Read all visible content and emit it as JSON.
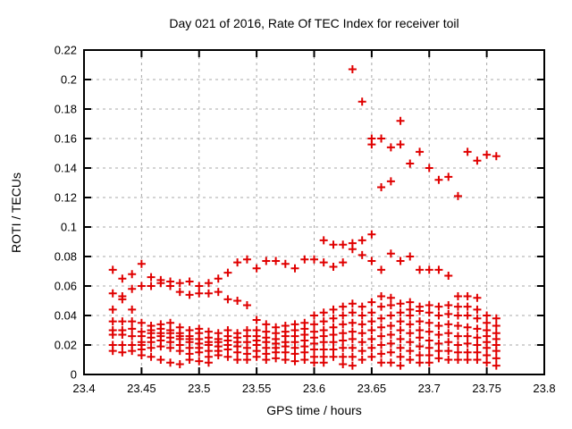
{
  "window": {
    "title": "Day 021 of 2016, Rate Of TEC Index for receiver toil"
  },
  "colors": {
    "marker": "#e00000",
    "grid": "#a8a8a8",
    "axis": "#000000",
    "background": "#ffffff"
  },
  "chart_data": {
    "type": "scatter",
    "title": "Day 021 of 2016, Rate Of TEC Index for receiver toil",
    "xlabel": "GPS time / hours",
    "ylabel": "ROTI / TECUs",
    "xlim": [
      23.4,
      23.8
    ],
    "ylim": [
      0,
      0.22
    ],
    "grid": "dashed",
    "legend": "none",
    "marker": {
      "shape": "plus",
      "color": "#e00000",
      "size": 9
    },
    "xticks": {
      "values": [
        23.4,
        23.45,
        23.5,
        23.55,
        23.6,
        23.65,
        23.7,
        23.75,
        23.8
      ],
      "labels": [
        "23.4",
        "23.45",
        "23.5",
        "23.55",
        "23.6",
        "23.65",
        "23.7",
        "23.75",
        "23.8"
      ]
    },
    "yticks": {
      "values": [
        0,
        0.02,
        0.04,
        0.06,
        0.08,
        0.1,
        0.12,
        0.14,
        0.16,
        0.18,
        0.2,
        0.22
      ],
      "labels": [
        "0",
        "0.02",
        "0.04",
        "0.06",
        "0.08",
        "0.1",
        "0.12",
        "0.14",
        "0.16",
        "0.18",
        "0.2",
        "0.22"
      ]
    },
    "series": [
      {
        "name": "ROTI",
        "columns": [
          {
            "t": 23.425,
            "v": [
              0.071,
              0.055,
              0.044,
              0.036,
              0.03,
              0.027,
              0.02,
              0.016
            ]
          },
          {
            "t": 23.4333,
            "v": [
              0.065,
              0.053,
              0.051,
              0.036,
              0.03,
              0.027,
              0.02,
              0.015
            ]
          },
          {
            "t": 23.4417,
            "v": [
              0.068,
              0.058,
              0.044,
              0.036,
              0.031,
              0.026,
              0.02,
              0.016
            ]
          },
          {
            "t": 23.45,
            "v": [
              0.075,
              0.06,
              0.035,
              0.029,
              0.026,
              0.022,
              0.02,
              0.017,
              0.013
            ]
          },
          {
            "t": 23.4583,
            "v": [
              0.066,
              0.06,
              0.033,
              0.03,
              0.028,
              0.025,
              0.022,
              0.018,
              0.012
            ]
          },
          {
            "t": 23.4667,
            "v": [
              0.064,
              0.062,
              0.034,
              0.031,
              0.028,
              0.026,
              0.023,
              0.019,
              0.01
            ]
          },
          {
            "t": 23.475,
            "v": [
              0.063,
              0.06,
              0.035,
              0.03,
              0.028,
              0.025,
              0.022,
              0.018,
              0.008
            ]
          },
          {
            "t": 23.4833,
            "v": [
              0.062,
              0.056,
              0.032,
              0.028,
              0.026,
              0.024,
              0.02,
              0.016,
              0.007
            ]
          },
          {
            "t": 23.4917,
            "v": [
              0.063,
              0.054,
              0.03,
              0.026,
              0.024,
              0.022,
              0.018,
              0.014,
              0.01
            ]
          },
          {
            "t": 23.5,
            "v": [
              0.06,
              0.055,
              0.031,
              0.028,
              0.024,
              0.021,
              0.018,
              0.015,
              0.009
            ]
          },
          {
            "t": 23.5083,
            "v": [
              0.062,
              0.055,
              0.029,
              0.025,
              0.022,
              0.02,
              0.016,
              0.012,
              0.008
            ]
          },
          {
            "t": 23.5167,
            "v": [
              0.065,
              0.056,
              0.028,
              0.024,
              0.022,
              0.019,
              0.016,
              0.013
            ]
          },
          {
            "t": 23.525,
            "v": [
              0.069,
              0.051,
              0.03,
              0.026,
              0.023,
              0.02,
              0.017,
              0.012
            ]
          },
          {
            "t": 23.5333,
            "v": [
              0.076,
              0.05,
              0.028,
              0.025,
              0.022,
              0.019,
              0.015,
              0.01
            ]
          },
          {
            "t": 23.5417,
            "v": [
              0.078,
              0.047,
              0.03,
              0.026,
              0.022,
              0.018,
              0.014,
              0.01
            ]
          },
          {
            "t": 23.55,
            "v": [
              0.072,
              0.037,
              0.03,
              0.026,
              0.023,
              0.02,
              0.016,
              0.012
            ]
          },
          {
            "t": 23.5583,
            "v": [
              0.077,
              0.034,
              0.029,
              0.025,
              0.022,
              0.018,
              0.014,
              0.01
            ]
          },
          {
            "t": 23.5667,
            "v": [
              0.077,
              0.032,
              0.028,
              0.024,
              0.021,
              0.018,
              0.015,
              0.011
            ]
          },
          {
            "t": 23.575,
            "v": [
              0.075,
              0.033,
              0.029,
              0.026,
              0.022,
              0.019,
              0.015,
              0.01
            ]
          },
          {
            "t": 23.5833,
            "v": [
              0.072,
              0.034,
              0.03,
              0.026,
              0.022,
              0.018,
              0.014,
              0.009
            ]
          },
          {
            "t": 23.5917,
            "v": [
              0.078,
              0.035,
              0.031,
              0.027,
              0.023,
              0.019,
              0.015,
              0.01
            ]
          },
          {
            "t": 23.6,
            "v": [
              0.078,
              0.04,
              0.034,
              0.029,
              0.025,
              0.021,
              0.017,
              0.012,
              0.008
            ]
          },
          {
            "t": 23.6083,
            "v": [
              0.091,
              0.076,
              0.042,
              0.036,
              0.03,
              0.026,
              0.022,
              0.017,
              0.012,
              0.008
            ]
          },
          {
            "t": 23.6167,
            "v": [
              0.088,
              0.073,
              0.044,
              0.038,
              0.032,
              0.027,
              0.022,
              0.017,
              0.012
            ]
          },
          {
            "t": 23.625,
            "v": [
              0.088,
              0.076,
              0.046,
              0.04,
              0.034,
              0.028,
              0.023,
              0.018,
              0.012,
              0.007
            ]
          },
          {
            "t": 23.6333,
            "v": [
              0.207,
              0.089,
              0.085,
              0.048,
              0.042,
              0.035,
              0.029,
              0.024,
              0.018,
              0.012,
              0.006
            ]
          },
          {
            "t": 23.6417,
            "v": [
              0.185,
              0.091,
              0.081,
              0.046,
              0.04,
              0.034,
              0.028,
              0.022,
              0.016,
              0.01
            ]
          },
          {
            "t": 23.65,
            "v": [
              0.16,
              0.156,
              0.095,
              0.077,
              0.049,
              0.042,
              0.036,
              0.03,
              0.024,
              0.018,
              0.012
            ]
          },
          {
            "t": 23.6583,
            "v": [
              0.16,
              0.127,
              0.071,
              0.053,
              0.046,
              0.038,
              0.032,
              0.026,
              0.02,
              0.014,
              0.008
            ]
          },
          {
            "t": 23.6667,
            "v": [
              0.154,
              0.131,
              0.082,
              0.052,
              0.047,
              0.04,
              0.033,
              0.027,
              0.021,
              0.015,
              0.008
            ]
          },
          {
            "t": 23.675,
            "v": [
              0.172,
              0.156,
              0.077,
              0.048,
              0.042,
              0.036,
              0.03,
              0.024,
              0.018,
              0.012,
              0.006
            ]
          },
          {
            "t": 23.6833,
            "v": [
              0.143,
              0.08,
              0.049,
              0.044,
              0.04,
              0.034,
              0.028,
              0.022,
              0.016,
              0.01
            ]
          },
          {
            "t": 23.6917,
            "v": [
              0.151,
              0.071,
              0.046,
              0.043,
              0.036,
              0.03,
              0.025,
              0.019,
              0.013,
              0.008
            ]
          },
          {
            "t": 23.7,
            "v": [
              0.14,
              0.071,
              0.047,
              0.042,
              0.035,
              0.029,
              0.023,
              0.018,
              0.013,
              0.008
            ]
          },
          {
            "t": 23.7083,
            "v": [
              0.132,
              0.071,
              0.046,
              0.04,
              0.033,
              0.027,
              0.021,
              0.016,
              0.011
            ]
          },
          {
            "t": 23.7167,
            "v": [
              0.134,
              0.067,
              0.047,
              0.041,
              0.034,
              0.028,
              0.022,
              0.016,
              0.01
            ]
          },
          {
            "t": 23.725,
            "v": [
              0.121,
              0.053,
              0.046,
              0.04,
              0.033,
              0.026,
              0.02,
              0.015,
              0.01
            ]
          },
          {
            "t": 23.7333,
            "v": [
              0.151,
              0.053,
              0.046,
              0.04,
              0.032,
              0.026,
              0.021,
              0.015,
              0.01
            ]
          },
          {
            "t": 23.7417,
            "v": [
              0.145,
              0.052,
              0.044,
              0.038,
              0.031,
              0.025,
              0.02,
              0.015,
              0.01
            ]
          },
          {
            "t": 23.75,
            "v": [
              0.149,
              0.04,
              0.035,
              0.03,
              0.026,
              0.022,
              0.018,
              0.013,
              0.008
            ]
          },
          {
            "t": 23.7583,
            "v": [
              0.148,
              0.038,
              0.033,
              0.028,
              0.024,
              0.02,
              0.016,
              0.011,
              0.006
            ]
          }
        ]
      }
    ]
  }
}
